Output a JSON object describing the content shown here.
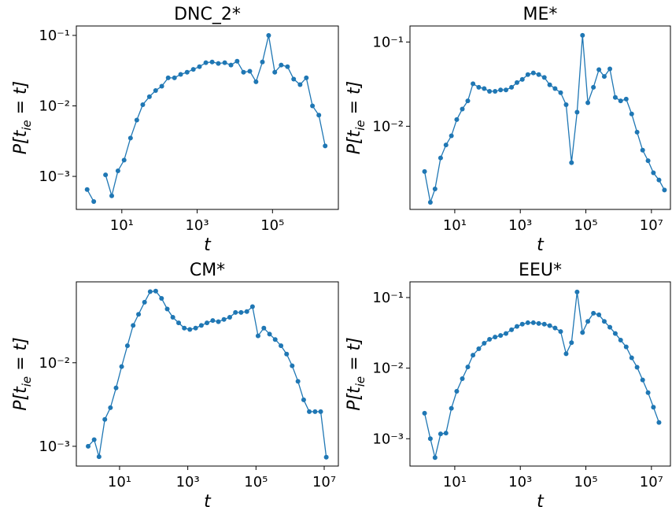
{
  "chart_data": [
    {
      "type": "line",
      "title": "DNC_2*",
      "xlabel": "t",
      "ylabel": "P[t_ie = t]",
      "xscale": "log",
      "yscale": "log",
      "xlim": [
        0.62,
        5600000
      ],
      "ylim": [
        0.00034,
        0.136
      ],
      "xticks": [
        {
          "value": 10,
          "label": "10¹"
        },
        {
          "value": 1000,
          "label": "10³"
        },
        {
          "value": 100000,
          "label": "10⁵"
        }
      ],
      "yticks": [
        {
          "value": 0.001,
          "label": "10⁻³"
        },
        {
          "value": 0.01,
          "label": "10⁻²"
        },
        {
          "value": 0.1,
          "label": "10⁻¹"
        }
      ],
      "x": [
        1.2,
        1.8,
        2.5,
        3.7,
        5.4,
        7.9,
        11.5,
        17,
        25,
        36,
        54,
        79,
        115,
        170,
        250,
        365,
        540,
        790,
        1150,
        1700,
        2500,
        3650,
        5400,
        7900,
        11500,
        17000,
        25000,
        36500,
        54000,
        79000,
        115000,
        170000,
        250000,
        365000,
        540000,
        790000,
        1150000,
        1700000,
        2500000
      ],
      "series": [
        {
          "name": "DNC_2*",
          "color": "#1f77b4",
          "values": [
            0.00065,
            0.00044,
            null,
            0.00105,
            0.00053,
            0.0012,
            0.0017,
            0.0035,
            0.0063,
            0.0104,
            0.0135,
            0.0165,
            0.019,
            0.025,
            0.025,
            0.028,
            0.03,
            0.033,
            0.036,
            0.041,
            0.042,
            0.04,
            0.041,
            0.038,
            0.043,
            0.03,
            0.031,
            0.022,
            0.042,
            0.1,
            0.03,
            0.038,
            0.036,
            0.024,
            0.02,
            0.025,
            0.01,
            0.0074,
            0.0027
          ]
        }
      ]
    },
    {
      "type": "line",
      "title": "ME*",
      "xlabel": "t",
      "ylabel": "P[t_ie = t]",
      "xscale": "log",
      "yscale": "log",
      "xlim": [
        0.43,
        38000000
      ],
      "ylim": [
        0.00103,
        0.155
      ],
      "xticks": [
        {
          "value": 10,
          "label": "10¹"
        },
        {
          "value": 1000,
          "label": "10³"
        },
        {
          "value": 100000,
          "label": "10⁵"
        },
        {
          "value": 10000000,
          "label": "10⁷"
        }
      ],
      "yticks": [
        {
          "value": 0.01,
          "label": "10⁻²"
        },
        {
          "value": 0.1,
          "label": "10⁻¹"
        }
      ],
      "x": [
        1.2,
        1.8,
        2.5,
        3.7,
        5.4,
        7.9,
        11.5,
        17,
        25,
        36,
        54,
        79,
        115,
        170,
        250,
        365,
        540,
        790,
        1150,
        1700,
        2500,
        3650,
        5400,
        7900,
        11500,
        17000,
        25000,
        36500,
        54000,
        79000,
        115000,
        170000,
        250000,
        365000,
        540000,
        790000,
        1150000,
        1700000,
        2500000,
        3650000,
        5400000,
        7900000,
        11500000,
        17000000,
        25000000
      ],
      "series": [
        {
          "name": "ME*",
          "color": "#1f77b4",
          "values": [
            0.0029,
            0.00125,
            0.0018,
            0.0042,
            0.006,
            0.0077,
            0.012,
            0.016,
            0.02,
            0.032,
            0.029,
            0.028,
            0.026,
            0.026,
            0.027,
            0.027,
            0.029,
            0.033,
            0.036,
            0.041,
            0.043,
            0.041,
            0.038,
            0.031,
            0.028,
            0.025,
            0.018,
            0.0037,
            0.0147,
            0.12,
            0.019,
            0.029,
            0.047,
            0.039,
            0.048,
            0.022,
            0.02,
            0.021,
            0.014,
            0.0085,
            0.0052,
            0.0039,
            0.0028,
            0.0023,
            0.00175
          ]
        }
      ]
    },
    {
      "type": "line",
      "title": "CM*",
      "xlabel": "t",
      "ylabel": "P[t_ie = t]",
      "xscale": "log",
      "yscale": "log",
      "xlim": [
        0.54,
        26000000
      ],
      "ylim": [
        0.00058,
        0.093
      ],
      "xticks": [
        {
          "value": 10,
          "label": "10¹"
        },
        {
          "value": 1000,
          "label": "10³"
        },
        {
          "value": 100000,
          "label": "10⁵"
        },
        {
          "value": 10000000,
          "label": "10⁷"
        }
      ],
      "yticks": [
        {
          "value": 0.001,
          "label": "10⁻³"
        },
        {
          "value": 0.01,
          "label": "10⁻²"
        }
      ],
      "x": [
        1.2,
        1.8,
        2.5,
        3.7,
        5.4,
        7.9,
        11.5,
        17,
        25,
        36,
        54,
        79,
        115,
        170,
        250,
        365,
        540,
        790,
        1150,
        1700,
        2500,
        3650,
        5400,
        7900,
        11500,
        17000,
        25000,
        36500,
        54000,
        79000,
        115000,
        170000,
        250000,
        365000,
        540000,
        790000,
        1150000,
        1700000,
        2500000,
        3650000,
        5400000,
        7900000,
        11500000
      ],
      "series": [
        {
          "name": "CM*",
          "color": "#1f77b4",
          "values": [
            0.001,
            0.0012,
            0.00075,
            0.0021,
            0.0029,
            0.005,
            0.009,
            0.016,
            0.028,
            0.038,
            0.053,
            0.071,
            0.072,
            0.059,
            0.044,
            0.035,
            0.03,
            0.026,
            0.025,
            0.026,
            0.028,
            0.03,
            0.032,
            0.031,
            0.033,
            0.035,
            0.04,
            0.04,
            0.041,
            0.047,
            0.021,
            0.026,
            0.022,
            0.019,
            0.016,
            0.0127,
            0.0092,
            0.006,
            0.0036,
            0.0026,
            0.0026,
            0.0026,
            0.00074
          ]
        }
      ]
    },
    {
      "type": "line",
      "title": "EEU*",
      "xlabel": "t",
      "ylabel": "P[t_ie = t]",
      "xscale": "log",
      "yscale": "log",
      "xlim": [
        0.43,
        38000000
      ],
      "ylim": [
        0.00041,
        0.167
      ],
      "xticks": [
        {
          "value": 10,
          "label": "10¹"
        },
        {
          "value": 1000,
          "label": "10³"
        },
        {
          "value": 100000,
          "label": "10⁵"
        },
        {
          "value": 10000000,
          "label": "10⁷"
        }
      ],
      "yticks": [
        {
          "value": 0.001,
          "label": "10⁻³"
        },
        {
          "value": 0.01,
          "label": "10⁻²"
        },
        {
          "value": 0.1,
          "label": "10⁻¹"
        }
      ],
      "x": [
        1.2,
        1.8,
        2.5,
        3.7,
        5.4,
        7.9,
        11.5,
        17,
        25,
        36,
        54,
        79,
        115,
        170,
        250,
        365,
        540,
        790,
        1150,
        1700,
        2500,
        3650,
        5400,
        7900,
        11500,
        17000,
        25000,
        36500,
        54000,
        79000,
        115000,
        170000,
        250000,
        365000,
        540000,
        790000,
        1150000,
        1700000,
        2500000,
        3650000,
        5400000,
        7900000,
        11500000,
        17000000
      ],
      "series": [
        {
          "name": "EEU*",
          "color": "#1f77b4",
          "values": [
            0.0023,
            0.001,
            0.00054,
            0.00117,
            0.0012,
            0.0027,
            0.0047,
            0.0071,
            0.0104,
            0.0153,
            0.0188,
            0.0225,
            0.0256,
            0.0276,
            0.029,
            0.031,
            0.035,
            0.039,
            0.042,
            0.044,
            0.044,
            0.043,
            0.042,
            0.04,
            0.037,
            0.033,
            0.016,
            0.023,
            0.12,
            0.032,
            0.046,
            0.06,
            0.057,
            0.046,
            0.038,
            0.031,
            0.025,
            0.02,
            0.014,
            0.0103,
            0.0068,
            0.0045,
            0.0028,
            0.0017
          ]
        }
      ]
    }
  ]
}
